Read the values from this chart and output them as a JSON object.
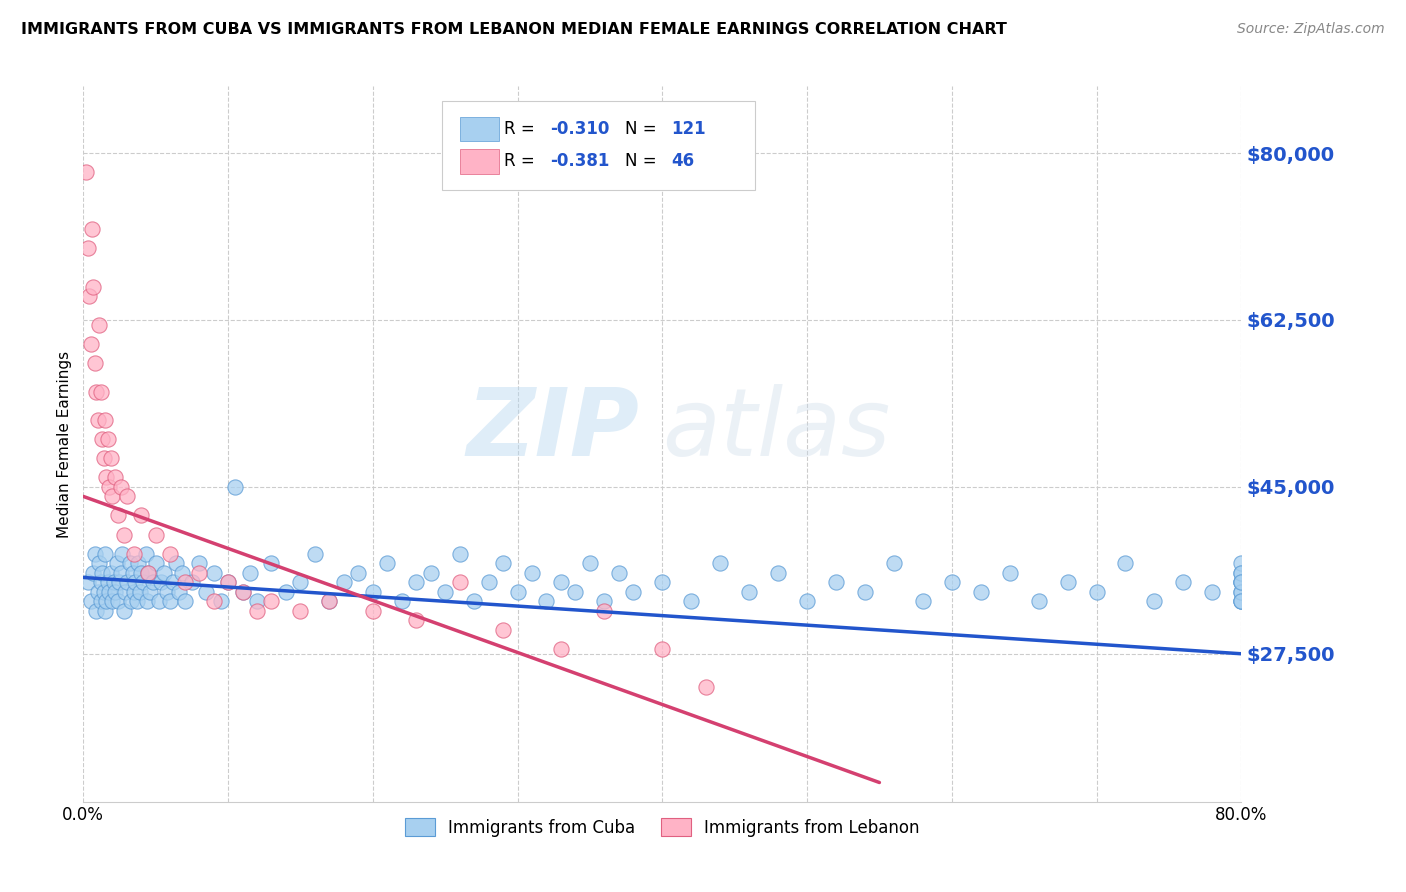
{
  "title": "IMMIGRANTS FROM CUBA VS IMMIGRANTS FROM LEBANON MEDIAN FEMALE EARNINGS CORRELATION CHART",
  "source": "Source: ZipAtlas.com",
  "ylabel": "Median Female Earnings",
  "yticks": [
    27500,
    45000,
    62500,
    80000
  ],
  "ytick_labels": [
    "$27,500",
    "$45,000",
    "$62,500",
    "$80,000"
  ],
  "xmin": 0.0,
  "xmax": 0.8,
  "ymin": 12000,
  "ymax": 87000,
  "cuba_color": "#a8d0f0",
  "cuba_edge": "#5b9bd5",
  "lebanon_color": "#ffb3c6",
  "lebanon_edge": "#e06080",
  "cuba_R": -0.31,
  "cuba_N": 121,
  "lebanon_R": -0.381,
  "lebanon_N": 46,
  "trend_color_cuba": "#2255cc",
  "trend_color_lebanon": "#d44070",
  "watermark_zip": "ZIP",
  "watermark_atlas": "atlas",
  "legend_labels": [
    "Immigrants from Cuba",
    "Immigrants from Lebanon"
  ],
  "cuba_x": [
    0.003,
    0.005,
    0.007,
    0.008,
    0.009,
    0.01,
    0.011,
    0.012,
    0.012,
    0.013,
    0.014,
    0.015,
    0.015,
    0.016,
    0.017,
    0.018,
    0.019,
    0.02,
    0.021,
    0.022,
    0.023,
    0.024,
    0.025,
    0.026,
    0.027,
    0.028,
    0.029,
    0.03,
    0.032,
    0.033,
    0.034,
    0.035,
    0.036,
    0.037,
    0.038,
    0.039,
    0.04,
    0.041,
    0.043,
    0.044,
    0.045,
    0.046,
    0.048,
    0.05,
    0.052,
    0.054,
    0.056,
    0.058,
    0.06,
    0.062,
    0.064,
    0.066,
    0.068,
    0.07,
    0.075,
    0.08,
    0.085,
    0.09,
    0.095,
    0.1,
    0.105,
    0.11,
    0.115,
    0.12,
    0.13,
    0.14,
    0.15,
    0.16,
    0.17,
    0.18,
    0.19,
    0.2,
    0.21,
    0.22,
    0.23,
    0.24,
    0.25,
    0.26,
    0.27,
    0.28,
    0.29,
    0.3,
    0.31,
    0.32,
    0.33,
    0.34,
    0.35,
    0.36,
    0.37,
    0.38,
    0.4,
    0.42,
    0.44,
    0.46,
    0.48,
    0.5,
    0.52,
    0.54,
    0.56,
    0.58,
    0.6,
    0.62,
    0.64,
    0.66,
    0.68,
    0.7,
    0.72,
    0.74,
    0.76,
    0.78,
    0.8,
    0.8,
    0.8,
    0.8,
    0.8,
    0.8,
    0.8,
    0.8,
    0.8,
    0.8,
    0.8
  ],
  "cuba_y": [
    35000,
    33000,
    36000,
    38000,
    32000,
    34000,
    37000,
    33000,
    35000,
    36000,
    34000,
    32000,
    38000,
    33000,
    35000,
    34000,
    36000,
    33000,
    35000,
    34000,
    37000,
    33000,
    35000,
    36000,
    38000,
    32000,
    34000,
    35000,
    37000,
    33000,
    36000,
    34000,
    35000,
    33000,
    37000,
    34000,
    36000,
    35000,
    38000,
    33000,
    36000,
    34000,
    35000,
    37000,
    33000,
    35000,
    36000,
    34000,
    33000,
    35000,
    37000,
    34000,
    36000,
    33000,
    35000,
    37000,
    34000,
    36000,
    33000,
    35000,
    45000,
    34000,
    36000,
    33000,
    37000,
    34000,
    35000,
    38000,
    33000,
    35000,
    36000,
    34000,
    37000,
    33000,
    35000,
    36000,
    34000,
    38000,
    33000,
    35000,
    37000,
    34000,
    36000,
    33000,
    35000,
    34000,
    37000,
    33000,
    36000,
    34000,
    35000,
    33000,
    37000,
    34000,
    36000,
    33000,
    35000,
    34000,
    37000,
    33000,
    35000,
    34000,
    36000,
    33000,
    35000,
    34000,
    37000,
    33000,
    35000,
    34000,
    36000,
    33000,
    35000,
    34000,
    37000,
    33000,
    35000,
    34000,
    36000,
    33000,
    35000
  ],
  "lebanon_x": [
    0.002,
    0.003,
    0.004,
    0.005,
    0.006,
    0.007,
    0.008,
    0.009,
    0.01,
    0.011,
    0.012,
    0.013,
    0.014,
    0.015,
    0.016,
    0.017,
    0.018,
    0.019,
    0.02,
    0.022,
    0.024,
    0.026,
    0.028,
    0.03,
    0.035,
    0.04,
    0.045,
    0.05,
    0.06,
    0.07,
    0.08,
    0.09,
    0.1,
    0.11,
    0.12,
    0.13,
    0.15,
    0.17,
    0.2,
    0.23,
    0.26,
    0.29,
    0.33,
    0.36,
    0.4,
    0.43
  ],
  "lebanon_y": [
    78000,
    70000,
    65000,
    60000,
    72000,
    66000,
    58000,
    55000,
    52000,
    62000,
    55000,
    50000,
    48000,
    52000,
    46000,
    50000,
    45000,
    48000,
    44000,
    46000,
    42000,
    45000,
    40000,
    44000,
    38000,
    42000,
    36000,
    40000,
    38000,
    35000,
    36000,
    33000,
    35000,
    34000,
    32000,
    33000,
    32000,
    33000,
    32000,
    31000,
    35000,
    30000,
    28000,
    32000,
    28000,
    24000
  ]
}
